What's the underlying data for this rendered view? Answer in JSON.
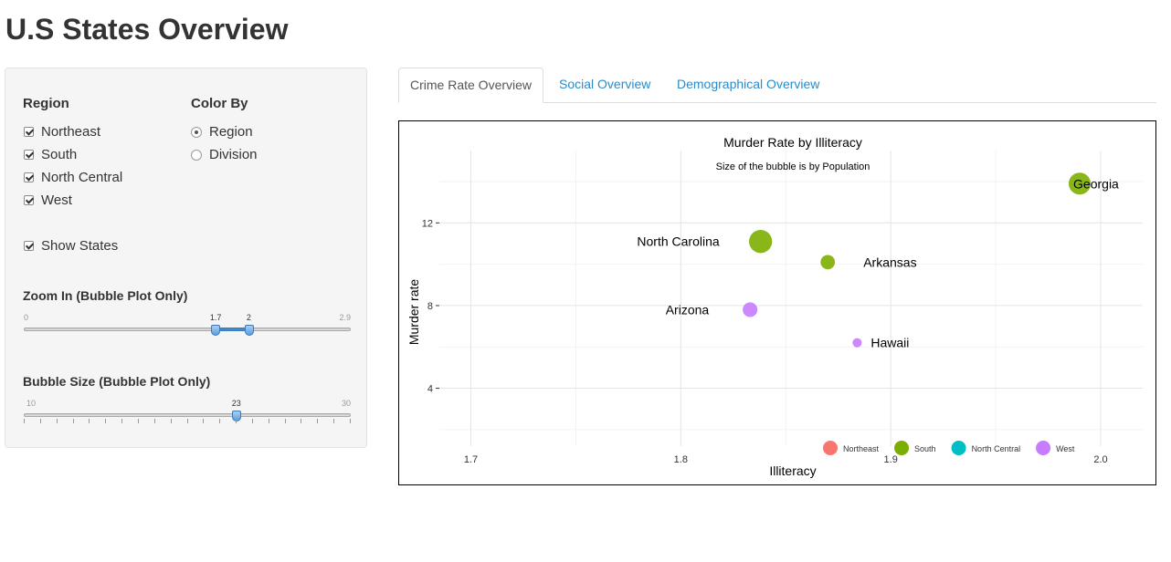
{
  "page": {
    "title": "U.S States Overview"
  },
  "sidebar": {
    "region": {
      "label": "Region",
      "options": [
        {
          "label": "Northeast",
          "checked": true
        },
        {
          "label": "South",
          "checked": true
        },
        {
          "label": "North Central",
          "checked": true
        },
        {
          "label": "West",
          "checked": true
        }
      ]
    },
    "color_by": {
      "label": "Color By",
      "options": [
        {
          "label": "Region",
          "selected": true
        },
        {
          "label": "Division",
          "selected": false
        }
      ]
    },
    "show_states": {
      "label": "Show States",
      "checked": true
    },
    "zoom": {
      "label": "Zoom In (Bubble Plot Only)",
      "min": 0,
      "max": 2.9,
      "min_label": "0",
      "max_label": "2.9",
      "from": 1.7,
      "to": 2,
      "from_label": "1.7",
      "to_label": "2"
    },
    "bubble_size": {
      "label": "Bubble Size (Bubble Plot Only)",
      "min": 10,
      "max": 30,
      "min_label": "10",
      "max_label": "30",
      "value": 23,
      "value_label": "23"
    }
  },
  "tabs": [
    {
      "label": "Crime Rate Overview",
      "active": true
    },
    {
      "label": "Social Overview",
      "active": false
    },
    {
      "label": "Demographical Overview",
      "active": false
    }
  ],
  "chart_data": {
    "type": "scatter",
    "title": "Murder Rate by Illiteracy",
    "subtitle": "Size of the bubble is by Population",
    "xlabel": "Illiteracy",
    "ylabel": "Murder rate",
    "xlim": [
      1.685,
      2.02
    ],
    "ylim": [
      1.2,
      15.5
    ],
    "xticks": [
      1.7,
      1.8,
      1.9,
      2.0
    ],
    "xtick_labels": [
      "1.7",
      "1.8",
      "1.9",
      "2.0"
    ],
    "yticks": [
      4,
      8,
      12
    ],
    "ytick_labels": [
      "4",
      "8",
      "12"
    ],
    "grid": true,
    "legend_position": "bottom-right",
    "colors": {
      "Northeast": "#f8766d",
      "South": "#7cae00",
      "North Central": "#00bfc4",
      "West": "#c77cff"
    },
    "legend": [
      "Northeast",
      "South",
      "North Central",
      "West"
    ],
    "points": [
      {
        "state": "Georgia",
        "region": "South",
        "x": 1.99,
        "y": 13.9,
        "population": 4931
      },
      {
        "state": "North Carolina",
        "region": "South",
        "x": 1.838,
        "y": 11.1,
        "population": 5441
      },
      {
        "state": "Arkansas",
        "region": "South",
        "x": 1.87,
        "y": 10.1,
        "population": 2110
      },
      {
        "state": "Arizona",
        "region": "West",
        "x": 1.833,
        "y": 7.8,
        "population": 2212
      },
      {
        "state": "Hawaii",
        "region": "West",
        "x": 1.884,
        "y": 6.2,
        "population": 868
      }
    ]
  }
}
